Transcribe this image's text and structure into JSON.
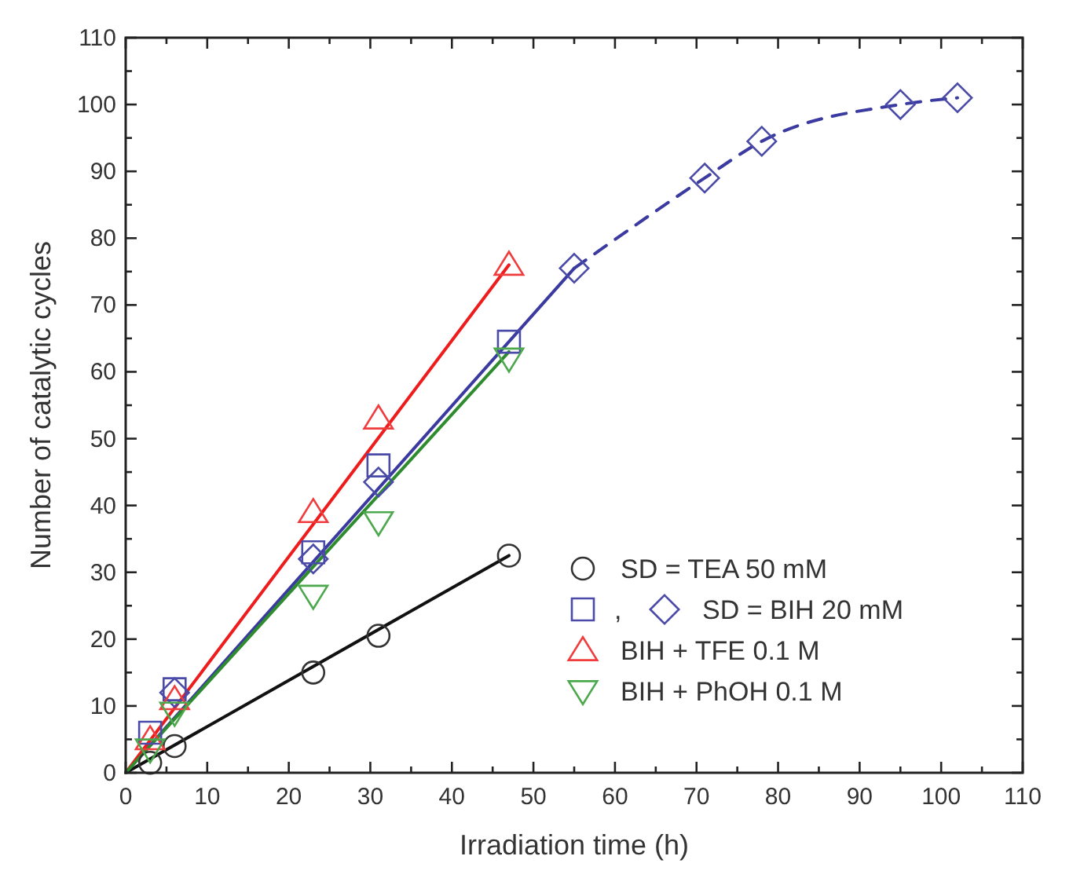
{
  "chart_data": {
    "type": "scatter",
    "xlabel": "Irradiation time (h)",
    "ylabel": "Number of catalytic cycles",
    "xlim": [
      0,
      110
    ],
    "ylim": [
      0,
      110
    ],
    "xticks": [
      0,
      {
        "value": 5,
        "label": null
      },
      10,
      {
        "value": 15,
        "label": null
      },
      20,
      {
        "value": 25,
        "label": null
      },
      30,
      {
        "value": 35,
        "label": null
      },
      40,
      {
        "value": 45,
        "label": null
      },
      50,
      {
        "value": 55,
        "label": null
      },
      60,
      {
        "value": 65,
        "label": null
      },
      70,
      {
        "value": 75,
        "label": null
      },
      80,
      {
        "value": 85,
        "label": null
      },
      90,
      {
        "value": 95,
        "label": null
      },
      100,
      {
        "value": 105,
        "label": null
      },
      110
    ],
    "yticks": [
      0,
      {
        "value": 5,
        "label": null
      },
      10,
      {
        "value": 15,
        "label": null
      },
      20,
      {
        "value": 25,
        "label": null
      },
      30,
      {
        "value": 35,
        "label": null
      },
      40,
      {
        "value": 45,
        "label": null
      },
      50,
      {
        "value": 55,
        "label": null
      },
      60,
      {
        "value": 65,
        "label": null
      },
      70,
      {
        "value": 75,
        "label": null
      },
      80,
      {
        "value": 85,
        "label": null
      },
      90,
      {
        "value": 95,
        "label": null
      },
      100,
      {
        "value": 105,
        "label": null
      },
      110
    ],
    "grid": false,
    "legend": "bottom right",
    "annotations": [
      ","
    ],
    "series": [
      {
        "type": "scatter",
        "name": "SD = TEA 50 mM",
        "color": "#333333",
        "marker": "circle",
        "x": [
          3,
          6,
          23,
          31,
          47
        ],
        "values": [
          1.5,
          4,
          15,
          20.5,
          32.5
        ]
      },
      {
        "type": "scatter",
        "color": "#4a4aa8",
        "marker": "square",
        "x": [
          3,
          6,
          23,
          31,
          47
        ],
        "values": [
          6,
          12.5,
          33,
          46,
          64.5
        ]
      },
      {
        "type": "scatter",
        "name": "SD = BIH 20 mM",
        "color": "#4a4aa8",
        "marker": "diamond",
        "x": [
          6,
          23,
          31,
          55,
          71,
          78,
          95,
          102
        ],
        "values": [
          12,
          32,
          43.5,
          75.5,
          89,
          94.5,
          100,
          101
        ]
      },
      {
        "type": "scatter",
        "name": "BIH + TFE 0.1 M",
        "color": "#f03c3c",
        "marker": "triangle",
        "x": [
          3,
          6,
          23,
          31,
          47
        ],
        "values": [
          5,
          11,
          39,
          53,
          76
        ]
      },
      {
        "type": "scatter",
        "name": "BIH + PhOH 0.1 M",
        "color": "#4ca84c",
        "marker": "triangle-down",
        "x": [
          3,
          6,
          23,
          31,
          47
        ],
        "values": [
          3.5,
          9,
          26.5,
          37.5,
          62
        ]
      },
      {
        "type": "line",
        "color": "#111111",
        "line_style": "solid",
        "x": [
          0,
          47
        ],
        "values": [
          0,
          32.5
        ]
      },
      {
        "type": "line",
        "color": "#3a3aa0",
        "line_style": "solid",
        "x": [
          0,
          55
        ],
        "values": [
          0,
          75.5
        ]
      },
      {
        "type": "line",
        "color": "#3a3aa0",
        "line_style": "dashed",
        "x": [
          55,
          71,
          78,
          95,
          102
        ],
        "values": [
          75.5,
          89,
          94.5,
          100,
          101
        ]
      },
      {
        "type": "line",
        "color": "#ee1c1c",
        "line_style": "solid",
        "x": [
          0,
          47
        ],
        "values": [
          0,
          76
        ]
      },
      {
        "type": "line",
        "color": "#2e8b2e",
        "line_style": "solid",
        "x": [
          0,
          47
        ],
        "values": [
          0,
          63
        ]
      }
    ]
  }
}
